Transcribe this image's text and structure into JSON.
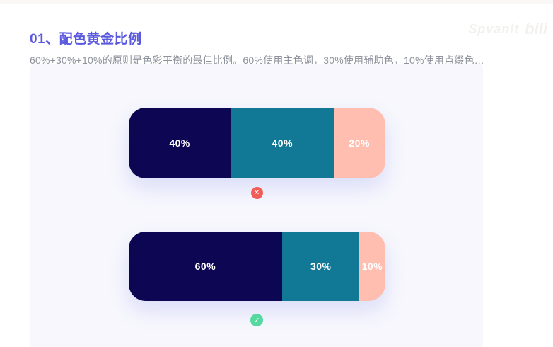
{
  "header": {
    "title": "01、配色黄金比例",
    "subtitle": "60%+30%+10%的原则是色彩平衡的最佳比例。60%使用主色调，30%使用辅助色，10%使用点缀色…"
  },
  "watermark": {
    "username": "Spvanlt",
    "logo_text": "bili"
  },
  "colors": {
    "title": "#5b5adf",
    "subtitle_text": "#8d929c",
    "card_bg": "#f7f7fd",
    "primary_navy": "#0d0653",
    "secondary_teal": "#117896",
    "accent_pink": "#ffbeaf",
    "wrong_red": "#f25c58",
    "right_green": "#55d9a0"
  },
  "chart_data": {
    "type": "bar",
    "note": "two horizontal 100%-stacked proportion bars comparing color ratios",
    "bars": [
      {
        "verdict": "wrong",
        "segments": [
          {
            "label": "40%",
            "value": 40,
            "color": "#0d0653",
            "role": "主色调"
          },
          {
            "label": "40%",
            "value": 40,
            "color": "#117896",
            "role": "辅助色"
          },
          {
            "label": "20%",
            "value": 20,
            "color": "#ffbeaf",
            "role": "点缀色"
          }
        ]
      },
      {
        "verdict": "right",
        "segments": [
          {
            "label": "60%",
            "value": 60,
            "color": "#0d0653",
            "role": "主色调"
          },
          {
            "label": "30%",
            "value": 30,
            "color": "#117896",
            "role": "辅助色"
          },
          {
            "label": "10%",
            "value": 10,
            "color": "#ffbeaf",
            "role": "点缀色"
          }
        ]
      }
    ],
    "wrong_icon_glyph": "✕",
    "right_icon_glyph": "✓"
  }
}
